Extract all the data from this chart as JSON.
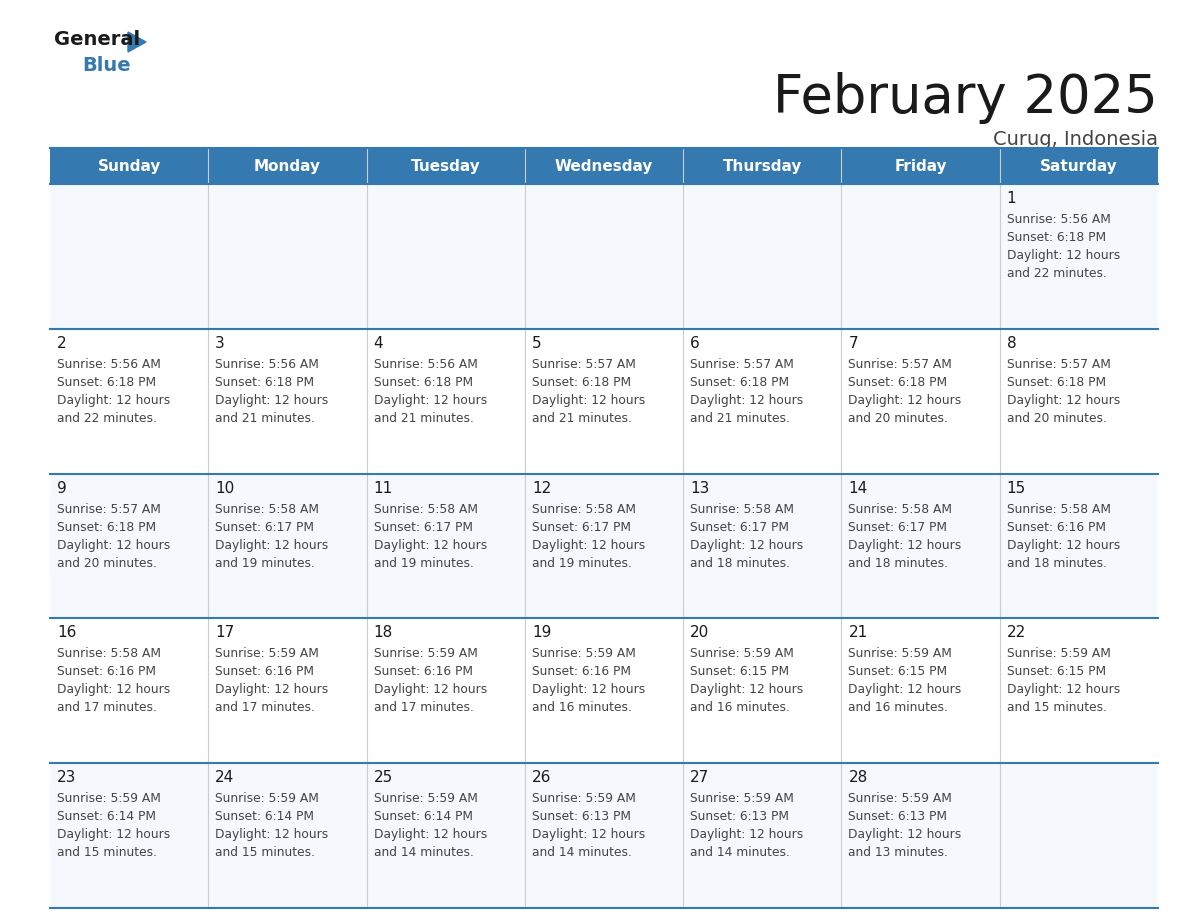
{
  "title": "February 2025",
  "subtitle": "Curug, Indonesia",
  "header_color": "#3579b1",
  "header_text_color": "#ffffff",
  "day_names": [
    "Sunday",
    "Monday",
    "Tuesday",
    "Wednesday",
    "Thursday",
    "Friday",
    "Saturday"
  ],
  "cell_bg_even": "#f5f8fc",
  "cell_bg_odd": "#ffffff",
  "title_color": "#1a1a1a",
  "subtitle_color": "#444444",
  "day_number_color": "#1a1a1a",
  "info_color": "#444444",
  "separator_color": "#3579b1",
  "border_color": "#cccccc",
  "calendar": [
    [
      null,
      null,
      null,
      null,
      null,
      null,
      {
        "day": 1,
        "sunrise": "5:56 AM",
        "sunset": "6:18 PM",
        "daylight": "12 hours and 22 minutes."
      }
    ],
    [
      {
        "day": 2,
        "sunrise": "5:56 AM",
        "sunset": "6:18 PM",
        "daylight": "12 hours and 22 minutes."
      },
      {
        "day": 3,
        "sunrise": "5:56 AM",
        "sunset": "6:18 PM",
        "daylight": "12 hours and 21 minutes."
      },
      {
        "day": 4,
        "sunrise": "5:56 AM",
        "sunset": "6:18 PM",
        "daylight": "12 hours and 21 minutes."
      },
      {
        "day": 5,
        "sunrise": "5:57 AM",
        "sunset": "6:18 PM",
        "daylight": "12 hours and 21 minutes."
      },
      {
        "day": 6,
        "sunrise": "5:57 AM",
        "sunset": "6:18 PM",
        "daylight": "12 hours and 21 minutes."
      },
      {
        "day": 7,
        "sunrise": "5:57 AM",
        "sunset": "6:18 PM",
        "daylight": "12 hours and 20 minutes."
      },
      {
        "day": 8,
        "sunrise": "5:57 AM",
        "sunset": "6:18 PM",
        "daylight": "12 hours and 20 minutes."
      }
    ],
    [
      {
        "day": 9,
        "sunrise": "5:57 AM",
        "sunset": "6:18 PM",
        "daylight": "12 hours and 20 minutes."
      },
      {
        "day": 10,
        "sunrise": "5:58 AM",
        "sunset": "6:17 PM",
        "daylight": "12 hours and 19 minutes."
      },
      {
        "day": 11,
        "sunrise": "5:58 AM",
        "sunset": "6:17 PM",
        "daylight": "12 hours and 19 minutes."
      },
      {
        "day": 12,
        "sunrise": "5:58 AM",
        "sunset": "6:17 PM",
        "daylight": "12 hours and 19 minutes."
      },
      {
        "day": 13,
        "sunrise": "5:58 AM",
        "sunset": "6:17 PM",
        "daylight": "12 hours and 18 minutes."
      },
      {
        "day": 14,
        "sunrise": "5:58 AM",
        "sunset": "6:17 PM",
        "daylight": "12 hours and 18 minutes."
      },
      {
        "day": 15,
        "sunrise": "5:58 AM",
        "sunset": "6:16 PM",
        "daylight": "12 hours and 18 minutes."
      }
    ],
    [
      {
        "day": 16,
        "sunrise": "5:58 AM",
        "sunset": "6:16 PM",
        "daylight": "12 hours and 17 minutes."
      },
      {
        "day": 17,
        "sunrise": "5:59 AM",
        "sunset": "6:16 PM",
        "daylight": "12 hours and 17 minutes."
      },
      {
        "day": 18,
        "sunrise": "5:59 AM",
        "sunset": "6:16 PM",
        "daylight": "12 hours and 17 minutes."
      },
      {
        "day": 19,
        "sunrise": "5:59 AM",
        "sunset": "6:16 PM",
        "daylight": "12 hours and 16 minutes."
      },
      {
        "day": 20,
        "sunrise": "5:59 AM",
        "sunset": "6:15 PM",
        "daylight": "12 hours and 16 minutes."
      },
      {
        "day": 21,
        "sunrise": "5:59 AM",
        "sunset": "6:15 PM",
        "daylight": "12 hours and 16 minutes."
      },
      {
        "day": 22,
        "sunrise": "5:59 AM",
        "sunset": "6:15 PM",
        "daylight": "12 hours and 15 minutes."
      }
    ],
    [
      {
        "day": 23,
        "sunrise": "5:59 AM",
        "sunset": "6:14 PM",
        "daylight": "12 hours and 15 minutes."
      },
      {
        "day": 24,
        "sunrise": "5:59 AM",
        "sunset": "6:14 PM",
        "daylight": "12 hours and 15 minutes."
      },
      {
        "day": 25,
        "sunrise": "5:59 AM",
        "sunset": "6:14 PM",
        "daylight": "12 hours and 14 minutes."
      },
      {
        "day": 26,
        "sunrise": "5:59 AM",
        "sunset": "6:13 PM",
        "daylight": "12 hours and 14 minutes."
      },
      {
        "day": 27,
        "sunrise": "5:59 AM",
        "sunset": "6:13 PM",
        "daylight": "12 hours and 14 minutes."
      },
      {
        "day": 28,
        "sunrise": "5:59 AM",
        "sunset": "6:13 PM",
        "daylight": "12 hours and 13 minutes."
      },
      null
    ]
  ]
}
